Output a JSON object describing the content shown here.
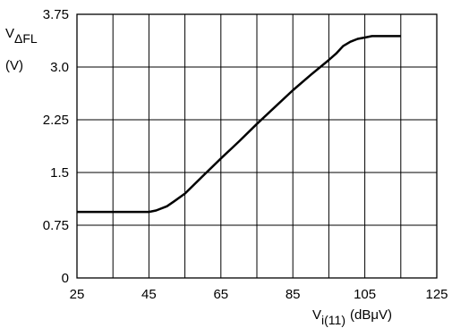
{
  "chart_data": {
    "type": "line",
    "title": "",
    "xlabel": {
      "main": "V",
      "sub": "i(11)",
      "unit": "(dBμV)"
    },
    "ylabel": {
      "main": "V",
      "sub": "ΔFL",
      "unit": "(V)"
    },
    "xlim": [
      25,
      125
    ],
    "ylim": [
      0,
      3.75
    ],
    "x_ticks": [
      "25",
      "45",
      "65",
      "85",
      "105",
      "125"
    ],
    "y_ticks": [
      "0",
      "0.75",
      "1.5",
      "2.25",
      "3.0",
      "3.75"
    ],
    "grid": true,
    "series": [
      {
        "x": [
          25,
          30,
          35,
          40,
          45,
          47,
          50,
          52,
          55,
          60,
          65,
          70,
          75,
          80,
          85,
          90,
          95,
          97,
          99,
          101,
          103,
          105,
          107,
          110,
          115
        ],
        "y": [
          0.94,
          0.94,
          0.94,
          0.94,
          0.94,
          0.96,
          1.02,
          1.09,
          1.2,
          1.45,
          1.7,
          1.94,
          2.19,
          2.43,
          2.67,
          2.89,
          3.1,
          3.19,
          3.3,
          3.36,
          3.4,
          3.42,
          3.44,
          3.44,
          3.44
        ],
        "color": "#000000"
      }
    ]
  }
}
